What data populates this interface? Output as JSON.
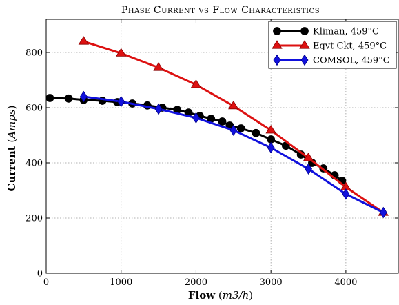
{
  "chart_data": {
    "type": "line",
    "title": "Phase Current vs Flow Characteristics",
    "xlabel": {
      "main": "Flow",
      "unit": "m3/h"
    },
    "ylabel": {
      "main": "Current",
      "unit": "Amps"
    },
    "xlim": [
      0,
      4700
    ],
    "ylim": [
      0,
      920
    ],
    "xticks": [
      0,
      1000,
      2000,
      3000,
      4000
    ],
    "yticks": [
      0,
      200,
      400,
      600,
      800
    ],
    "grid": true,
    "legend_position": "top-right",
    "series": [
      {
        "name": "Kliman, 459°C",
        "color": "#000000",
        "marker": "circle",
        "x": [
          50,
          300,
          500,
          750,
          950,
          1150,
          1350,
          1550,
          1750,
          1900,
          2050,
          2200,
          2350,
          2450,
          2600,
          2800,
          3000,
          3200,
          3400,
          3550,
          3700,
          3850,
          3950
        ],
        "y": [
          635,
          633,
          628,
          625,
          620,
          615,
          608,
          600,
          592,
          582,
          570,
          560,
          550,
          535,
          525,
          508,
          485,
          462,
          430,
          400,
          380,
          355,
          335
        ]
      },
      {
        "name": "Eqvt Ckt, 459°C",
        "color": "#dd1111",
        "marker": "triangle",
        "x": [
          500,
          1000,
          1500,
          2000,
          2500,
          3000,
          3500,
          4000,
          4500
        ],
        "y": [
          840,
          797,
          745,
          683,
          606,
          518,
          418,
          312,
          220
        ]
      },
      {
        "name": "COMSOL, 459°C",
        "color": "#1111dd",
        "marker": "diamond",
        "x": [
          500,
          1000,
          1500,
          2000,
          2500,
          3000,
          3500,
          4000,
          4500
        ],
        "y": [
          640,
          622,
          595,
          563,
          518,
          455,
          378,
          287,
          220
        ]
      }
    ]
  }
}
